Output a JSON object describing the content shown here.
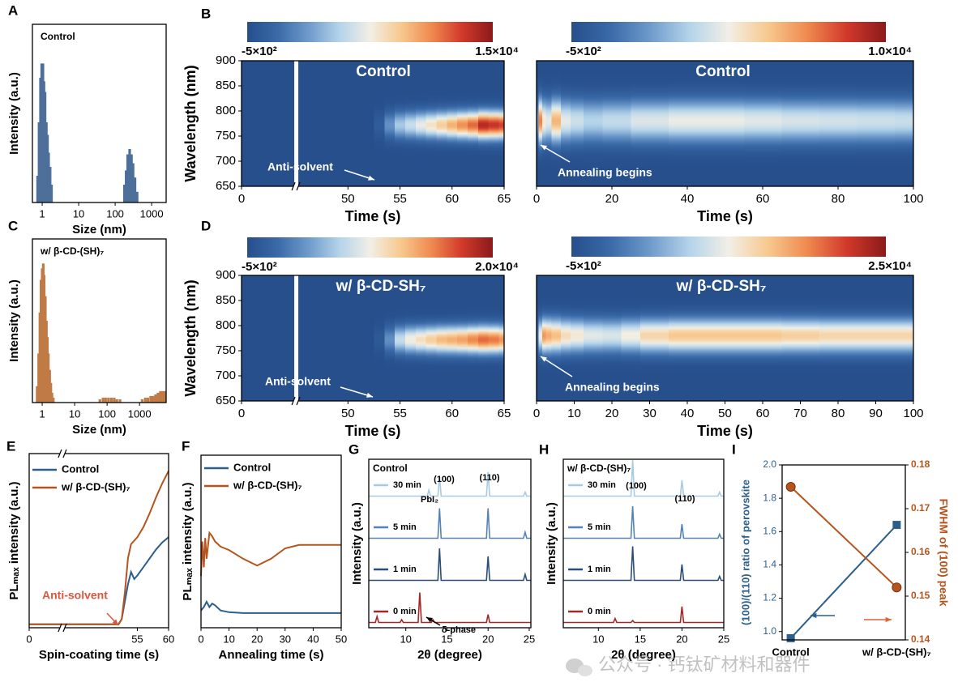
{
  "panel_labels": [
    "A",
    "B",
    "C",
    "D",
    "E",
    "F",
    "G",
    "H",
    "I"
  ],
  "watermark": "公众号 · 钙钛矿材料和器件",
  "chart_data": [
    {
      "type": "bar",
      "title": "Control",
      "xlabel": "Size (nm)",
      "ylabel": "Intensity (a.u.)",
      "log_x": true,
      "xlim": [
        0.54,
        2500
      ],
      "xticks": [
        1,
        10,
        100,
        1000
      ],
      "ylim": [
        0,
        100
      ],
      "color": "#4d6f99",
      "x": [
        0.75,
        0.82,
        0.9,
        0.97,
        1.05,
        1.12,
        1.2,
        1.3,
        1.4,
        1.5,
        1.65,
        1.8,
        180,
        200,
        220,
        250,
        280,
        310,
        350,
        400
      ],
      "values": [
        15,
        45,
        70,
        78,
        78,
        68,
        62,
        45,
        38,
        28,
        20,
        10,
        10,
        18,
        27,
        30,
        27,
        22,
        14,
        6
      ]
    },
    {
      "type": "heatmap",
      "title": "Control",
      "xlabel": "Time (s)",
      "ylabel": "Wavelength (nm)",
      "xlim": [
        0,
        65
      ],
      "xbreak": [
        5,
        45
      ],
      "xticks": [
        0,
        50,
        55,
        60,
        65
      ],
      "ylim": [
        650,
        900
      ],
      "yticks": [
        650,
        700,
        750,
        800,
        850,
        900
      ],
      "clim": [
        -500,
        15000
      ],
      "cticks": [
        {
          "value": -500,
          "label": "-5×10²"
        },
        {
          "value": 15000,
          "label": "1.5×10⁴"
        }
      ],
      "colormap": [
        "#264f8c",
        "#3a6aa8",
        "#6e9acb",
        "#b3d3ea",
        "#f2efe6",
        "#f7c98f",
        "#ef8a4f",
        "#d2392b",
        "#8b1a1a"
      ],
      "peak_wavelength": 772,
      "fwhm": 45,
      "x": [
        0,
        52,
        53,
        54,
        55,
        56,
        57,
        58,
        59,
        60,
        61,
        62,
        63,
        64,
        65
      ],
      "values": [
        -500,
        -500,
        500,
        3000,
        5000,
        6000,
        7000,
        8000,
        9000,
        10000,
        11000,
        12000,
        14000,
        13500,
        13000
      ],
      "annotations": [
        "Anti-solvent"
      ]
    },
    {
      "type": "heatmap",
      "title": "Control",
      "xlabel": "Time (s)",
      "xlim": [
        0,
        100
      ],
      "xticks": [
        0,
        20,
        40,
        60,
        80,
        100
      ],
      "ylim": [
        650,
        900
      ],
      "clim": [
        -500,
        10000
      ],
      "cticks": [
        {
          "value": -500,
          "label": "-5×10²"
        },
        {
          "value": 10000,
          "label": "1.0×10⁴"
        }
      ],
      "colormap": [
        "#264f8c",
        "#3a6aa8",
        "#6e9acb",
        "#b3d3ea",
        "#f2efe6",
        "#f7c98f",
        "#ef8a4f",
        "#d2392b",
        "#8b1a1a"
      ],
      "peak_wavelength": 780,
      "fwhm": 70,
      "x": [
        0,
        1,
        2,
        3,
        5,
        8,
        10,
        15,
        20,
        30,
        40,
        50,
        60,
        70,
        80,
        90,
        100
      ],
      "values": [
        2000,
        7500,
        5000,
        4500,
        6500,
        4500,
        4000,
        3500,
        3800,
        4300,
        4600,
        4600,
        4400,
        4200,
        4100,
        4000,
        3900
      ],
      "annotations": [
        "Annealing begins"
      ]
    },
    {
      "type": "bar",
      "title": "w/ β-CD-(SH)₇",
      "xlabel": "Size (nm)",
      "ylabel": "Intensity (a.u.)",
      "log_x": true,
      "xlim": [
        0.5,
        6600
      ],
      "xticks": [
        1,
        10,
        100,
        1000
      ],
      "ylim": [
        0,
        100
      ],
      "color": "#c07a45",
      "x": [
        0.7,
        0.78,
        0.85,
        0.92,
        1.0,
        1.08,
        1.15,
        1.25,
        1.35,
        1.45,
        1.55,
        1.7,
        1.85,
        2.0,
        2.2,
        60,
        75,
        90,
        110,
        135,
        165,
        200,
        250,
        1200,
        1500,
        1800,
        2200,
        2600,
        3100,
        3700,
        4400,
        5200,
        6000
      ],
      "values": [
        10,
        30,
        55,
        75,
        82,
        85,
        78,
        65,
        50,
        40,
        30,
        20,
        12,
        6,
        3,
        2,
        3,
        3,
        3,
        3,
        3,
        2,
        2,
        2,
        3,
        3,
        4,
        4,
        5,
        6,
        7,
        7,
        7
      ]
    },
    {
      "type": "heatmap",
      "title": "w/ β-CD-SH₇",
      "xlabel": "Time (s)",
      "ylabel": "Wavelength (nm)",
      "xlim": [
        0,
        65
      ],
      "xbreak": [
        5,
        45
      ],
      "xticks": [
        0,
        50,
        55,
        60,
        65
      ],
      "ylim": [
        650,
        900
      ],
      "yticks": [
        650,
        700,
        750,
        800,
        850,
        900
      ],
      "clim": [
        -500,
        20000
      ],
      "cticks": [
        {
          "value": -500,
          "label": "-5×10²"
        },
        {
          "value": 20000,
          "label": "2.0×10⁴"
        }
      ],
      "colormap": [
        "#264f8c",
        "#3a6aa8",
        "#6e9acb",
        "#b3d3ea",
        "#f2efe6",
        "#f7c98f",
        "#ef8a4f",
        "#d2392b",
        "#8b1a1a"
      ],
      "peak_wavelength": 772,
      "fwhm": 45,
      "x": [
        0,
        52,
        53,
        54,
        55,
        56,
        57,
        58,
        59,
        60,
        61,
        62,
        63,
        64,
        65
      ],
      "values": [
        -500,
        -500,
        500,
        4000,
        8000,
        10000,
        11000,
        12000,
        13000,
        13500,
        14000,
        15000,
        16000,
        15500,
        14500
      ],
      "annotations": [
        "Anti-solvent"
      ]
    },
    {
      "type": "heatmap",
      "title": "w/ β-CD-SH₇",
      "xlabel": "Time (s)",
      "xlim": [
        0,
        100
      ],
      "xticks": [
        0,
        10,
        20,
        30,
        40,
        50,
        60,
        70,
        80,
        90,
        100
      ],
      "ylim": [
        650,
        900
      ],
      "clim": [
        -500,
        25000
      ],
      "cticks": [
        {
          "value": -500,
          "label": "-5×10²"
        },
        {
          "value": 25000,
          "label": "2.5×10⁴"
        }
      ],
      "colormap": [
        "#264f8c",
        "#3a6aa8",
        "#6e9acb",
        "#b3d3ea",
        "#f2efe6",
        "#f7c98f",
        "#ef8a4f",
        "#d2392b",
        "#8b1a1a"
      ],
      "peak_wavelength": 780,
      "fwhm": 55,
      "x": [
        0,
        1,
        2,
        3,
        5,
        8,
        10,
        15,
        20,
        25,
        30,
        40,
        50,
        60,
        70,
        80,
        90,
        100
      ],
      "values": [
        3000,
        12000,
        18000,
        17000,
        16000,
        14000,
        13000,
        11500,
        11000,
        12500,
        14500,
        15500,
        15500,
        15500,
        15000,
        14500,
        14500,
        14500
      ],
      "annotations": [
        "Annealing begins"
      ]
    },
    {
      "type": "line",
      "xlabel": "Spin-coating time (s)",
      "ylabel": "PLₘₐₓ intensity (a.u.)",
      "xlim": [
        0,
        60
      ],
      "xbreak": [
        10,
        43
      ],
      "xticks": [
        0,
        55,
        60
      ],
      "ylim": [
        0,
        100
      ],
      "legend": "upper-left",
      "annotations": [
        "Anti-solvent"
      ],
      "series": [
        {
          "name": "Control",
          "color": "#2d5f8b",
          "x": [
            0,
            10,
            43,
            52,
            52.5,
            53,
            53.5,
            54,
            54.5,
            55,
            56,
            57,
            58,
            59,
            60
          ],
          "values": [
            2,
            2,
            2,
            2,
            5,
            15,
            25,
            32,
            28,
            30,
            35,
            40,
            45,
            49,
            52
          ]
        },
        {
          "name": "w/ β-CD-(SH)₇",
          "color": "#b5541c",
          "x": [
            0,
            10,
            43,
            52,
            52.5,
            53,
            53.5,
            54,
            54.5,
            55,
            56,
            57,
            58,
            59,
            60
          ],
          "values": [
            2,
            2,
            2,
            2,
            5,
            20,
            40,
            48,
            50,
            52,
            58,
            66,
            75,
            83,
            90
          ]
        }
      ]
    },
    {
      "type": "line",
      "xlabel": "Annealing time (s)",
      "ylabel": "PLₘₐₓ intensity (a.u.)",
      "xlim": [
        0,
        50
      ],
      "xticks": [
        0,
        10,
        20,
        30,
        40,
        50
      ],
      "ylim": [
        0,
        100
      ],
      "legend": "upper-left",
      "series": [
        {
          "name": "Control",
          "color": "#2d5f8b",
          "x": [
            0,
            1,
            2,
            3,
            4,
            5,
            7,
            10,
            15,
            20,
            30,
            40,
            50
          ],
          "values": [
            10,
            12,
            15,
            12,
            14,
            13,
            10,
            9,
            8.5,
            8.5,
            8.5,
            8.5,
            8.5
          ]
        },
        {
          "name": "w/ β-CD-(SH)₇",
          "color": "#b5541c",
          "x": [
            0,
            0.5,
            1,
            1.5,
            2,
            3,
            4,
            5,
            7,
            10,
            15,
            20,
            25,
            30,
            35,
            40,
            45,
            50
          ],
          "values": [
            30,
            50,
            35,
            52,
            40,
            55,
            53,
            50,
            47,
            45,
            40,
            36,
            40,
            46,
            48,
            48,
            48,
            48
          ]
        }
      ]
    },
    {
      "type": "xrd",
      "title": "Control",
      "xlabel": "2θ (degree)",
      "ylabel": "Intensity (a.u.)",
      "xlim": [
        5.5,
        25.2
      ],
      "xticks": [
        10,
        15,
        20,
        25
      ],
      "ylim": [
        0,
        100
      ],
      "annotations": [
        "(100)",
        "(110)",
        "PbI₂",
        "δ-phase"
      ],
      "series": [
        {
          "name": "30 min",
          "color": "#a8cbe3",
          "x": [
            5.5,
            12.6,
            12.8,
            13.0,
            13.9,
            14.1,
            14.3,
            19.8,
            20.0,
            20.2,
            24.3,
            24.5,
            24.7,
            25.2
          ],
          "values": [
            5,
            5,
            20,
            5,
            5,
            55,
            5,
            5,
            65,
            5,
            5,
            15,
            5,
            5
          ]
        },
        {
          "name": "5 min",
          "color": "#5583b8",
          "x": [
            5.5,
            13.9,
            14.1,
            14.3,
            19.8,
            20.0,
            20.2,
            24.3,
            24.5,
            24.7,
            25.2
          ],
          "values": [
            5,
            5,
            80,
            5,
            5,
            80,
            5,
            5,
            20,
            5,
            5
          ]
        },
        {
          "name": "1 min",
          "color": "#2c4d78",
          "x": [
            5.5,
            13.9,
            14.1,
            14.3,
            19.8,
            20.0,
            20.2,
            24.3,
            24.5,
            24.7,
            25.2
          ],
          "values": [
            5,
            5,
            85,
            5,
            5,
            65,
            5,
            5,
            20,
            5,
            5
          ]
        },
        {
          "name": "0 min",
          "color": "#a42828",
          "x": [
            5.5,
            6.3,
            6.5,
            6.7,
            9.3,
            9.5,
            9.7,
            11.5,
            11.7,
            11.9,
            13.1,
            13.3,
            13.5,
            19.8,
            20.0,
            20.2,
            25.2
          ],
          "values": [
            5,
            5,
            20,
            5,
            5,
            12,
            5,
            5,
            80,
            5,
            5,
            12,
            5,
            5,
            25,
            5,
            5
          ]
        }
      ]
    },
    {
      "type": "xrd",
      "title": "w/ β-CD-(SH)₇",
      "xlabel": "2θ (degree)",
      "ylabel": "Intensity (a.u.)",
      "xlim": [
        5.8,
        25
      ],
      "xticks": [
        10,
        15,
        20,
        25
      ],
      "ylim": [
        0,
        100
      ],
      "annotations": [
        "(100)",
        "(110)"
      ],
      "series": [
        {
          "name": "30 min",
          "color": "#a8cbe3",
          "x": [
            5.8,
            13.9,
            14.1,
            14.3,
            19.8,
            20.0,
            20.2,
            24.3,
            24.5,
            24.7,
            25
          ],
          "values": [
            5,
            5,
            95,
            5,
            5,
            45,
            5,
            5,
            15,
            5,
            5
          ]
        },
        {
          "name": "5 min",
          "color": "#5583b8",
          "x": [
            5.8,
            13.9,
            14.1,
            14.3,
            19.8,
            20.0,
            20.2,
            24.3,
            24.5,
            24.7,
            25
          ],
          "values": [
            5,
            5,
            85,
            5,
            5,
            40,
            5,
            5,
            15,
            5,
            5
          ]
        },
        {
          "name": "1 min",
          "color": "#2c4d78",
          "x": [
            5.8,
            13.9,
            14.1,
            14.3,
            19.8,
            20.0,
            20.2,
            24.3,
            24.5,
            24.7,
            25
          ],
          "values": [
            5,
            5,
            90,
            5,
            5,
            45,
            5,
            5,
            15,
            5,
            5
          ]
        },
        {
          "name": "0 min",
          "color": "#a42828",
          "x": [
            5.8,
            11.8,
            12.0,
            12.2,
            13.9,
            14.1,
            14.3,
            19.8,
            20.0,
            20.2,
            25
          ],
          "values": [
            5,
            5,
            15,
            5,
            5,
            10,
            5,
            5,
            45,
            5,
            5
          ]
        }
      ]
    },
    {
      "type": "dual",
      "categories": [
        "Control",
        "w/ β-CD-(SH)₇"
      ],
      "ylabel": "(100)/(110) ratio of perovskite",
      "y2label": "FWHM of (100) peak",
      "ylim": [
        0.95,
        2.0
      ],
      "yticks": [
        {
          "value": 1,
          "label": "1.0"
        },
        1.2,
        1.4,
        1.6,
        1.8,
        {
          "value": 2,
          "label": "2.0"
        }
      ],
      "y2lim": [
        0.14,
        0.18
      ],
      "y2ticks": [
        0.14,
        0.15,
        0.16,
        0.17,
        0.18
      ],
      "series": [
        {
          "color": "#2d5f8b",
          "marker": "square",
          "values": [
            0.96,
            1.64
          ]
        },
        {
          "color": "#b5541c",
          "marker": "circle",
          "axis": "y2",
          "values": [
            0.175,
            0.152
          ]
        }
      ]
    }
  ]
}
